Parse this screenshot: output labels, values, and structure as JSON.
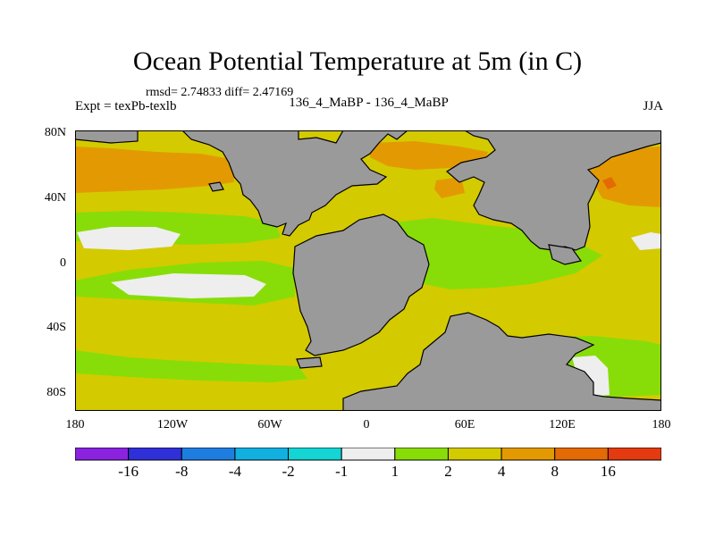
{
  "title": "Ocean Potential Temperature at 5m (in C)",
  "stats": "rmsd= 2.74833 diff= 2.47169",
  "expt": "Expt = texPb-texlb",
  "case": "136_4_MaBP - 136_4_MaBP",
  "season": "JJA",
  "lat_labels": [
    "80N",
    "40N",
    "0",
    "40S",
    "80S"
  ],
  "lon_labels": [
    "180",
    "120W",
    "60W",
    "0",
    "60E",
    "120E",
    "180"
  ],
  "colorbar": {
    "colors": [
      "#8a22e0",
      "#3030d8",
      "#1e7ee0",
      "#12b0e0",
      "#14d4d4",
      "#eeeeee",
      "#88dd08",
      "#d4ca00",
      "#e39a02",
      "#e46a06",
      "#e43a10"
    ],
    "labels": [
      "-16",
      "-8",
      "-4",
      "-2",
      "-1",
      "1",
      "2",
      "4",
      "8",
      "16"
    ]
  },
  "map_colors": {
    "land": "#9a9a9a",
    "zone_2_4": "#d4ca00",
    "zone_4_8": "#e39a02",
    "zone_1_2": "#88dd08",
    "zone_neg1_1": "#eeeeee",
    "zone_8_16": "#e46a06"
  }
}
